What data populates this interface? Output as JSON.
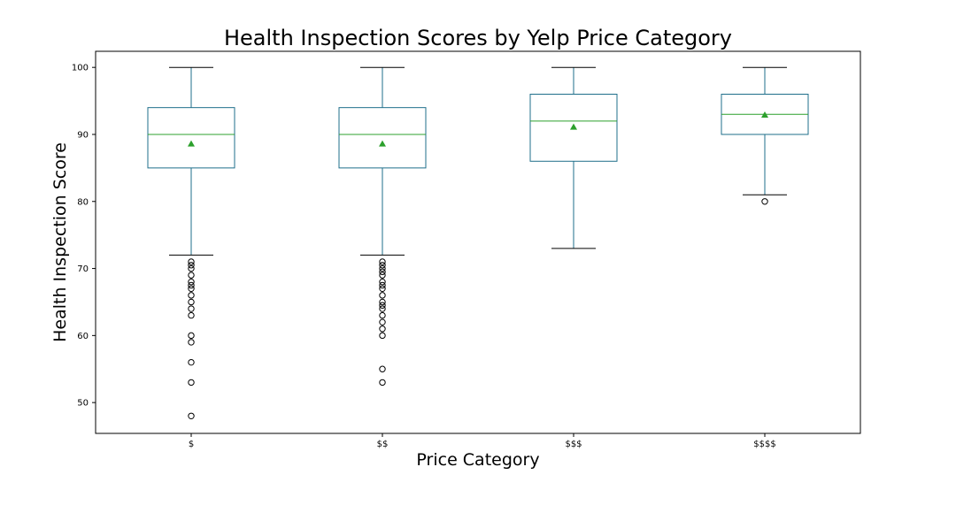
{
  "chart_data": {
    "type": "box",
    "title": "Health Inspection Scores by Yelp Price Category",
    "xlabel": "Price Category",
    "ylabel": "Health Inspection Score",
    "categories": [
      "$",
      "$$",
      "$$$",
      "$$$$"
    ],
    "ylim": [
      45.4,
      102.4
    ],
    "yticks": [
      50,
      60,
      70,
      80,
      90,
      100
    ],
    "grid": false,
    "boxes": [
      {
        "category": "$",
        "whisker_low": 72,
        "q1": 85,
        "median": 90,
        "q3": 94,
        "whisker_high": 100,
        "mean": 88.6,
        "outliers": [
          71,
          70.5,
          70,
          69,
          68,
          67.5,
          67,
          66,
          65,
          64,
          63,
          60,
          59,
          56,
          53,
          48
        ]
      },
      {
        "category": "$$",
        "whisker_low": 72,
        "q1": 85,
        "median": 90,
        "q3": 94,
        "whisker_high": 100,
        "mean": 88.6,
        "outliers": [
          71,
          70.5,
          70,
          69.5,
          69,
          68,
          67.5,
          67,
          66,
          65,
          64.5,
          64,
          63,
          62,
          61,
          60,
          55,
          53
        ]
      },
      {
        "category": "$$$",
        "whisker_low": 73,
        "q1": 86,
        "median": 92,
        "q3": 96,
        "whisker_high": 100,
        "mean": 91.1,
        "outliers": []
      },
      {
        "category": "$$$$",
        "whisker_low": 81,
        "q1": 90,
        "median": 93,
        "q3": 96,
        "whisker_high": 100,
        "mean": 92.9,
        "outliers": [
          80
        ]
      }
    ],
    "colors": {
      "box": "#1f6f8b",
      "median": "#2ca02c",
      "mean_marker": "#2ca02c",
      "whisker_cap": "#000000",
      "outlier": "#000000",
      "axes": "#000000"
    }
  }
}
